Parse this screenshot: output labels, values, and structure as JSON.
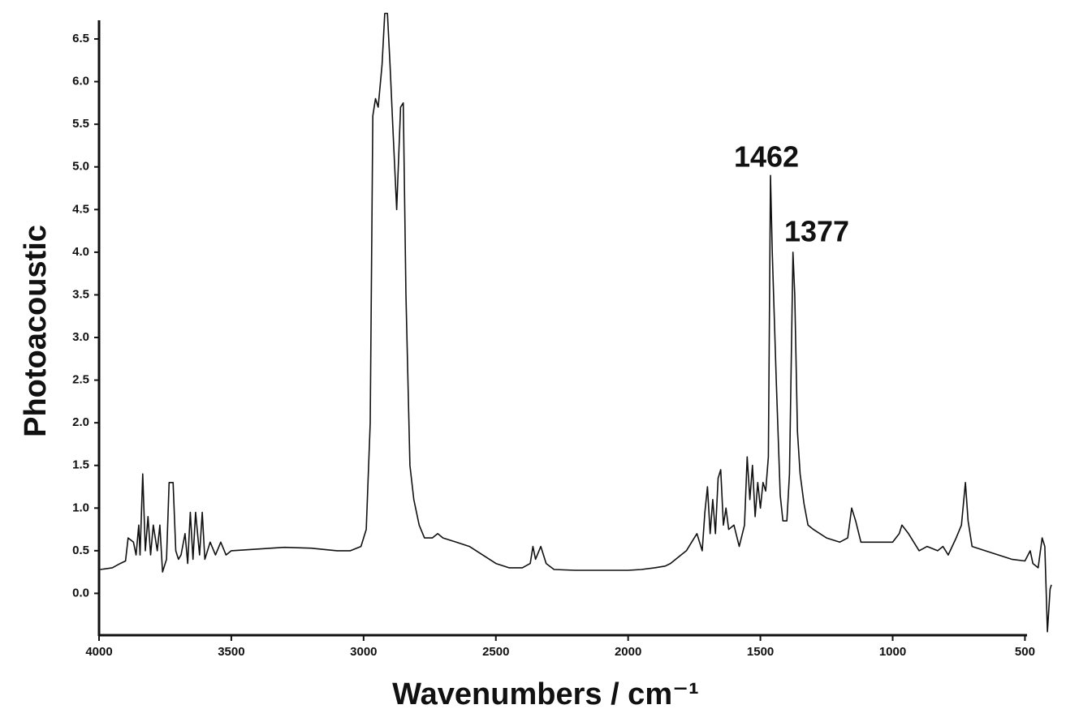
{
  "chart_data": {
    "type": "line",
    "y_label": "Photoacoustic",
    "x_label": "Wavenumbers / cm⁻¹",
    "annotations": [
      "1462",
      "1377"
    ],
    "xlim": [
      4000,
      400
    ],
    "xticks": [
      4000,
      3500,
      3000,
      2500,
      2000,
      1500,
      1000,
      500
    ],
    "ylim": [
      -0.5,
      6.7
    ],
    "yticks": [
      {
        "value": 0,
        "label": "0.0"
      },
      0.5,
      {
        "value": 1,
        "label": "1.0"
      },
      1.5,
      {
        "value": 2,
        "label": "2.0"
      },
      2.5,
      {
        "value": 3,
        "label": "3.0"
      },
      3.5,
      {
        "value": 4,
        "label": "4.0"
      },
      4.5,
      {
        "value": 5,
        "label": "5.0"
      },
      5.5,
      {
        "value": 6,
        "label": "6.0"
      },
      6.5
    ],
    "grid": false,
    "series": [
      {
        "name": "Photoacoustic",
        "color": "#111111",
        "x": [
          3995,
          3950,
          3920,
          3900,
          3890,
          3870,
          3860,
          3850,
          3845,
          3835,
          3825,
          3815,
          3805,
          3795,
          3780,
          3770,
          3760,
          3745,
          3735,
          3720,
          3710,
          3700,
          3690,
          3675,
          3665,
          3655,
          3645,
          3635,
          3620,
          3610,
          3600,
          3580,
          3560,
          3540,
          3520,
          3500,
          3400,
          3300,
          3200,
          3100,
          3050,
          3010,
          2990,
          2975,
          2965,
          2955,
          2945,
          2930,
          2920,
          2910,
          2900,
          2890,
          2875,
          2860,
          2850,
          2840,
          2825,
          2810,
          2790,
          2770,
          2740,
          2720,
          2700,
          2650,
          2600,
          2550,
          2500,
          2450,
          2400,
          2370,
          2360,
          2350,
          2330,
          2310,
          2280,
          2200,
          2100,
          2000,
          1950,
          1900,
          1860,
          1840,
          1820,
          1800,
          1780,
          1760,
          1740,
          1720,
          1710,
          1700,
          1690,
          1680,
          1670,
          1660,
          1650,
          1640,
          1630,
          1620,
          1600,
          1580,
          1560,
          1550,
          1540,
          1530,
          1520,
          1510,
          1500,
          1490,
          1480,
          1470,
          1462,
          1455,
          1440,
          1425,
          1415,
          1400,
          1390,
          1377,
          1370,
          1360,
          1350,
          1335,
          1320,
          1300,
          1250,
          1200,
          1170,
          1155,
          1140,
          1120,
          1050,
          1000,
          975,
          965,
          940,
          900,
          870,
          830,
          810,
          790,
          760,
          740,
          725,
          715,
          700,
          650,
          600,
          550,
          500,
          480,
          470,
          450,
          435,
          425,
          415,
          405,
          400
        ],
        "values": [
          0.28,
          0.3,
          0.35,
          0.38,
          0.65,
          0.6,
          0.45,
          0.8,
          0.45,
          1.4,
          0.5,
          0.9,
          0.45,
          0.8,
          0.5,
          0.8,
          0.25,
          0.4,
          1.3,
          1.3,
          0.5,
          0.4,
          0.45,
          0.7,
          0.35,
          0.95,
          0.4,
          0.95,
          0.45,
          0.95,
          0.4,
          0.6,
          0.45,
          0.6,
          0.45,
          0.5,
          0.52,
          0.54,
          0.53,
          0.5,
          0.5,
          0.55,
          0.75,
          2.0,
          5.6,
          5.8,
          5.7,
          6.2,
          6.8,
          6.8,
          6.2,
          5.5,
          4.5,
          5.7,
          5.75,
          3.5,
          1.5,
          1.1,
          0.8,
          0.65,
          0.65,
          0.7,
          0.65,
          0.6,
          0.55,
          0.45,
          0.35,
          0.3,
          0.3,
          0.35,
          0.55,
          0.4,
          0.55,
          0.35,
          0.28,
          0.27,
          0.27,
          0.27,
          0.28,
          0.3,
          0.32,
          0.35,
          0.4,
          0.45,
          0.5,
          0.6,
          0.7,
          0.5,
          0.95,
          1.25,
          0.7,
          1.1,
          0.7,
          1.35,
          1.45,
          0.8,
          1.0,
          0.75,
          0.8,
          0.55,
          0.8,
          1.6,
          1.1,
          1.5,
          0.9,
          1.3,
          1.0,
          1.3,
          1.2,
          1.6,
          4.9,
          4.0,
          2.5,
          1.15,
          0.85,
          0.85,
          1.4,
          4.0,
          3.5,
          1.9,
          1.4,
          1.05,
          0.8,
          0.75,
          0.65,
          0.6,
          0.65,
          1.0,
          0.85,
          0.6,
          0.6,
          0.6,
          0.7,
          0.8,
          0.7,
          0.5,
          0.55,
          0.5,
          0.55,
          0.45,
          0.65,
          0.8,
          1.3,
          0.85,
          0.55,
          0.5,
          0.45,
          0.4,
          0.38,
          0.5,
          0.35,
          0.3,
          0.65,
          0.55,
          -0.45,
          0.05,
          0.1
        ]
      }
    ]
  }
}
